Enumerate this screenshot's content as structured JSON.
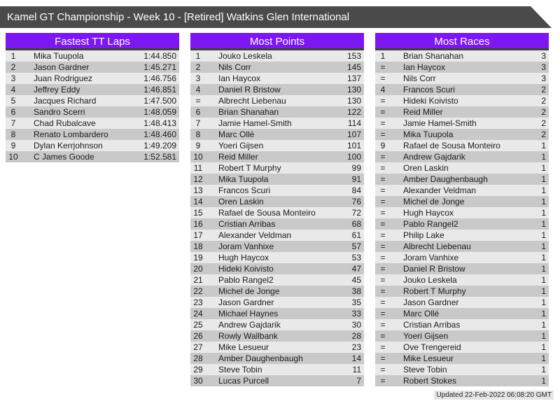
{
  "title_bar": {
    "text": "Kamel GT Championship - Week 10 - [Retired] Watkins Glen International"
  },
  "colors": {
    "titlebar_bg": "#4a4a4a",
    "table_header_bg": "#7d17f2",
    "table_header_underline": "#3f3f3f",
    "row_light": "#e9e9e9",
    "row_dark": "#c9c9c9",
    "row_text": "#1a1a1a",
    "updated_bg": "#e5e5e5"
  },
  "tables": [
    {
      "title": "Fastest TT Laps",
      "columns": [
        "rank",
        "name",
        "time"
      ],
      "rows": [
        {
          "rank": "1",
          "name": "Mika Tuupola",
          "value": "1:44.850"
        },
        {
          "rank": "2",
          "name": "Jason Gardner",
          "value": "1:45.271"
        },
        {
          "rank": "3",
          "name": "Juan Rodriguez",
          "value": "1:46.756"
        },
        {
          "rank": "4",
          "name": "Jeffrey Eddy",
          "value": "1:46.851"
        },
        {
          "rank": "5",
          "name": "Jacques Richard",
          "value": "1:47.500"
        },
        {
          "rank": "6",
          "name": "Sandro Scerri",
          "value": "1:48.059"
        },
        {
          "rank": "7",
          "name": "Chad Rubalcave",
          "value": "1:48.413"
        },
        {
          "rank": "8",
          "name": "Renato Lombardero",
          "value": "1:48.460"
        },
        {
          "rank": "9",
          "name": "Dylan Kerrjohnson",
          "value": "1:49.209"
        },
        {
          "rank": "10",
          "name": "C James Goode",
          "value": "1:52.581"
        }
      ]
    },
    {
      "title": "Most Points",
      "columns": [
        "rank",
        "name",
        "points"
      ],
      "rows": [
        {
          "rank": "1",
          "name": "Jouko Leskela",
          "value": "153"
        },
        {
          "rank": "2",
          "name": "Nils Corr",
          "value": "145"
        },
        {
          "rank": "3",
          "name": "Ian Haycox",
          "value": "137"
        },
        {
          "rank": "4",
          "name": "Daniel R Bristow",
          "value": "130"
        },
        {
          "rank": "=",
          "name": "Albrecht Liebenau",
          "value": "130"
        },
        {
          "rank": "6",
          "name": "Brian Shanahan",
          "value": "122"
        },
        {
          "rank": "7",
          "name": "Jamie Hamel-Smith",
          "value": "114"
        },
        {
          "rank": "8",
          "name": "Marc Ollé",
          "value": "107"
        },
        {
          "rank": "9",
          "name": "Yoeri Gijsen",
          "value": "101"
        },
        {
          "rank": "10",
          "name": "Reid Miller",
          "value": "100"
        },
        {
          "rank": "11",
          "name": "Robert T Murphy",
          "value": "99"
        },
        {
          "rank": "12",
          "name": "Mika Tuupola",
          "value": "91"
        },
        {
          "rank": "13",
          "name": "Francos Scuri",
          "value": "84"
        },
        {
          "rank": "14",
          "name": "Oren Laskin",
          "value": "76"
        },
        {
          "rank": "15",
          "name": "Rafael de Sousa Monteiro",
          "value": "72"
        },
        {
          "rank": "16",
          "name": "Cristian Arribas",
          "value": "68"
        },
        {
          "rank": "17",
          "name": "Alexander Veldman",
          "value": "61"
        },
        {
          "rank": "18",
          "name": "Joram Vanhixe",
          "value": "57"
        },
        {
          "rank": "19",
          "name": "Hugh Haycox",
          "value": "53"
        },
        {
          "rank": "20",
          "name": "Hideki Koivisto",
          "value": "47"
        },
        {
          "rank": "21",
          "name": "Pablo Rangel2",
          "value": "45"
        },
        {
          "rank": "22",
          "name": "Michel de Jonge",
          "value": "38"
        },
        {
          "rank": "23",
          "name": "Jason Gardner",
          "value": "35"
        },
        {
          "rank": "24",
          "name": "Michael Haynes",
          "value": "33"
        },
        {
          "rank": "25",
          "name": "Andrew Gajdarik",
          "value": "30"
        },
        {
          "rank": "26",
          "name": "Rowly Wallbank",
          "value": "28"
        },
        {
          "rank": "27",
          "name": "Mike Lesueur",
          "value": "23"
        },
        {
          "rank": "28",
          "name": "Amber Daughenbaugh",
          "value": "14"
        },
        {
          "rank": "29",
          "name": "Steve Tobin",
          "value": "11"
        },
        {
          "rank": "30",
          "name": "Lucas Purcell",
          "value": "7"
        }
      ]
    },
    {
      "title": "Most Races",
      "columns": [
        "rank",
        "name",
        "races"
      ],
      "rows": [
        {
          "rank": "1",
          "name": "Brian Shanahan",
          "value": "3"
        },
        {
          "rank": "=",
          "name": "Ian Haycox",
          "value": "3"
        },
        {
          "rank": "=",
          "name": "Nils Corr",
          "value": "3"
        },
        {
          "rank": "4",
          "name": "Francos Scuri",
          "value": "2"
        },
        {
          "rank": "=",
          "name": "Hideki Koivisto",
          "value": "2"
        },
        {
          "rank": "=",
          "name": "Reid Miller",
          "value": "2"
        },
        {
          "rank": "=",
          "name": "Jamie Hamel-Smith",
          "value": "2"
        },
        {
          "rank": "=",
          "name": "Mika Tuupola",
          "value": "2"
        },
        {
          "rank": "9",
          "name": "Rafael de Sousa Monteiro",
          "value": "1"
        },
        {
          "rank": "=",
          "name": "Andrew Gajdarik",
          "value": "1"
        },
        {
          "rank": "=",
          "name": "Oren Laskin",
          "value": "1"
        },
        {
          "rank": "=",
          "name": "Amber Daughenbaugh",
          "value": "1"
        },
        {
          "rank": "=",
          "name": "Alexander Veldman",
          "value": "1"
        },
        {
          "rank": "=",
          "name": "Michel de Jonge",
          "value": "1"
        },
        {
          "rank": "=",
          "name": "Hugh Haycox",
          "value": "1"
        },
        {
          "rank": "=",
          "name": "Pablo Rangel2",
          "value": "1"
        },
        {
          "rank": "=",
          "name": "Philip Lake",
          "value": "1"
        },
        {
          "rank": "=",
          "name": "Albrecht Liebenau",
          "value": "1"
        },
        {
          "rank": "=",
          "name": "Joram Vanhixe",
          "value": "1"
        },
        {
          "rank": "=",
          "name": "Daniel R Bristow",
          "value": "1"
        },
        {
          "rank": "=",
          "name": "Jouko Leskela",
          "value": "1"
        },
        {
          "rank": "=",
          "name": "Robert T Murphy",
          "value": "1"
        },
        {
          "rank": "=",
          "name": "Jason Gardner",
          "value": "1"
        },
        {
          "rank": "=",
          "name": "Marc Ollé",
          "value": "1"
        },
        {
          "rank": "=",
          "name": "Cristian Arribas",
          "value": "1"
        },
        {
          "rank": "=",
          "name": "Yoeri Gijsen",
          "value": "1"
        },
        {
          "rank": "=",
          "name": "Ove Trengereid",
          "value": "1"
        },
        {
          "rank": "=",
          "name": "Mike Lesueur",
          "value": "1"
        },
        {
          "rank": "=",
          "name": "Steve Tobin",
          "value": "1"
        },
        {
          "rank": "=",
          "name": "Robert Stokes",
          "value": "1"
        }
      ]
    }
  ],
  "footer": {
    "updated": "Updated 22-Feb-2022 06:08:20 GMT"
  }
}
